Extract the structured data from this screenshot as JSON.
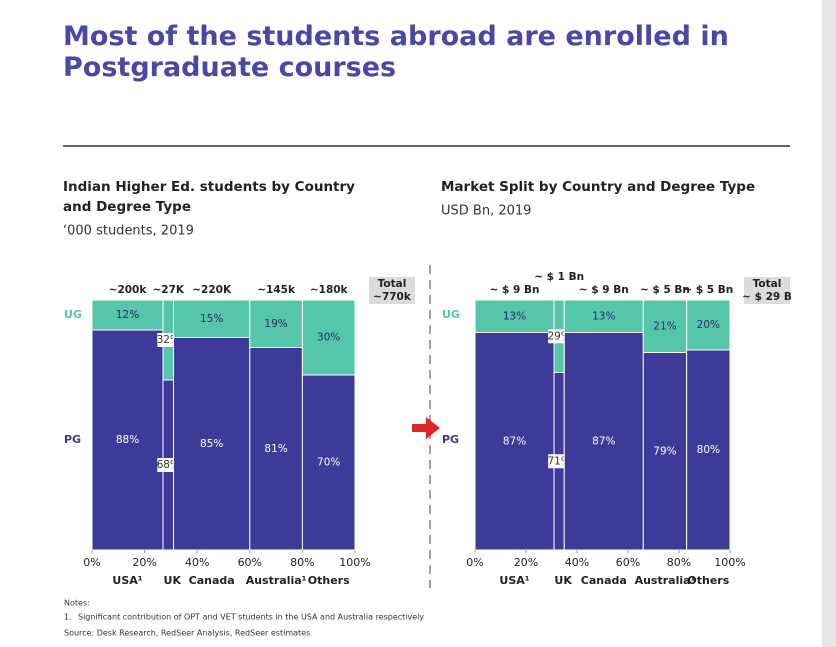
{
  "header": {
    "title": "Most of the students abroad are enrolled in Postgraduate courses"
  },
  "chart_data": [
    {
      "type": "mekko",
      "title": "Indian Higher Ed. students by Country and Degree Type",
      "subtitle": "‘000 students, 2019",
      "categories": [
        "USA¹",
        "UK",
        "Canada",
        "Australia¹",
        "Others"
      ],
      "widths": [
        27,
        4,
        29,
        20,
        20
      ],
      "column_labels": [
        "~200k",
        "~27K",
        "~220K",
        "~145k",
        "~180k"
      ],
      "total_label": {
        "title": "Total",
        "value": "~770k"
      },
      "series": [
        {
          "name": "UG",
          "color": "#55c6aa",
          "values": [
            12,
            32,
            15,
            19,
            30
          ],
          "value_labels": [
            "12%",
            "32%",
            "15%",
            "19%",
            "30%"
          ]
        },
        {
          "name": "PG",
          "color": "#3e3a99",
          "values": [
            88,
            68,
            85,
            81,
            70
          ],
          "value_labels": [
            "88%",
            "68%",
            "85%",
            "81%",
            "70%"
          ]
        }
      ],
      "xlim": [
        0,
        100
      ],
      "ylim": [
        0,
        100
      ],
      "xticks": [
        {
          "value": 0,
          "label": "0%"
        },
        {
          "value": 20,
          "label": "20%"
        },
        {
          "value": 40,
          "label": "40%"
        },
        {
          "value": 60,
          "label": "60%"
        },
        {
          "value": 80,
          "label": "80%"
        },
        {
          "value": 100,
          "label": "100%"
        }
      ]
    },
    {
      "type": "mekko",
      "title": "Market Split by Country and Degree Type",
      "subtitle": "USD Bn, 2019",
      "categories": [
        "USA¹",
        "UK",
        "Canada",
        "Australia¹",
        "Others"
      ],
      "widths": [
        31,
        4,
        31,
        17,
        17
      ],
      "column_labels": [
        "~ $ 9 Bn",
        "~ $ 1 Bn",
        "~ $ 9 Bn",
        "~ $ 5 Bn",
        "~ $ 5 Bn"
      ],
      "total_label": {
        "title": "Total",
        "value": "~ $ 29 B"
      },
      "series": [
        {
          "name": "UG",
          "color": "#55c6aa",
          "values": [
            13,
            29,
            13,
            21,
            20
          ],
          "value_labels": [
            "13%",
            "29%",
            "13%",
            "21%",
            "20%"
          ]
        },
        {
          "name": "PG",
          "color": "#3e3a99",
          "values": [
            87,
            71,
            87,
            79,
            80
          ],
          "value_labels": [
            "87%",
            "71%",
            "87%",
            "79%",
            "80%"
          ]
        }
      ],
      "xlim": [
        0,
        100
      ],
      "ylim": [
        0,
        100
      ],
      "xticks": [
        {
          "value": 0,
          "label": "0%"
        },
        {
          "value": 20,
          "label": "20%"
        },
        {
          "value": 40,
          "label": "40%"
        },
        {
          "value": 60,
          "label": "60%"
        },
        {
          "value": 80,
          "label": "80%"
        },
        {
          "value": 100,
          "label": "100%"
        }
      ]
    }
  ],
  "notes": {
    "heading": "Notes:",
    "items": [
      {
        "number": "1.",
        "text": "Significant contribution of OPT and VET students in the USA and Australia respectively"
      }
    ],
    "source": "Source: Desk Research, RedSeer Analysis, RedSeer estimates"
  }
}
